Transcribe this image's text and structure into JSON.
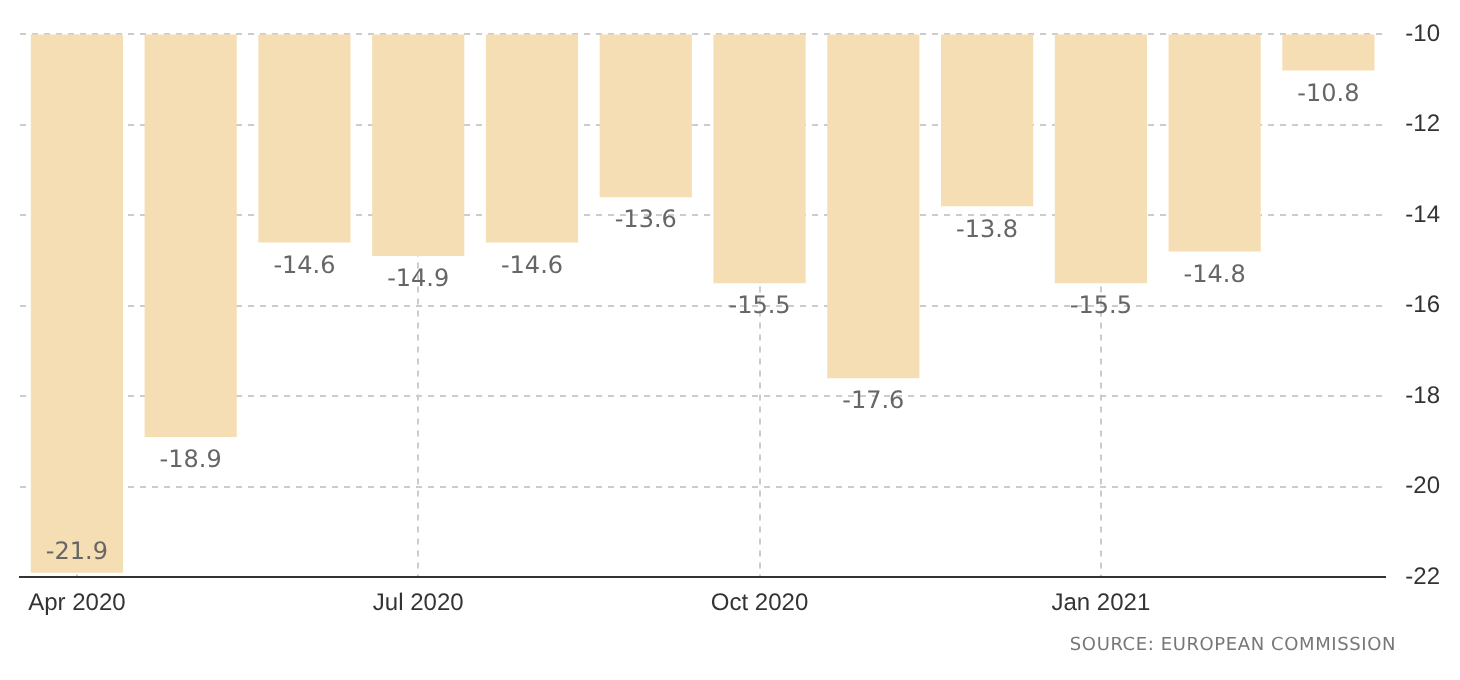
{
  "chart_data": {
    "type": "bar",
    "categories": [
      "Apr 2020",
      null,
      null,
      "Jul 2020",
      null,
      null,
      "Oct 2020",
      null,
      null,
      "Jan 2021",
      null,
      null
    ],
    "values": [
      -21.9,
      -18.9,
      -14.6,
      -14.9,
      -14.6,
      -13.6,
      -15.5,
      -17.6,
      -13.8,
      -15.5,
      -14.8,
      -10.8
    ],
    "color": "#f5deb3",
    "ylim": [
      -22,
      -10
    ],
    "yticks": [
      -22,
      -20,
      -18,
      -16,
      -14,
      -12,
      -10
    ],
    "grid": true,
    "data_labels": true,
    "line_style": "dashed",
    "annotations": [
      "SOURCE: EUROPEAN COMMISSION"
    ]
  }
}
